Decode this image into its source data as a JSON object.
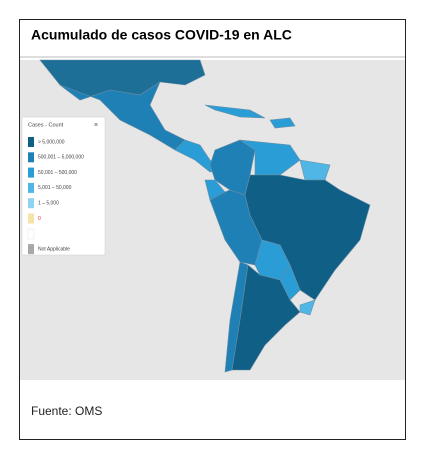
{
  "header": {
    "title": "Acumulado de casos COVID-19  en ALC"
  },
  "legend": {
    "title": "Cases - Count",
    "close": "×",
    "items": [
      {
        "label": "> 5,000,000",
        "color": "#0f5f86"
      },
      {
        "label": "500,001 – 5,000,000",
        "color": "#1e80b5"
      },
      {
        "label": "50,001 – 500,000",
        "color": "#2a9dd6"
      },
      {
        "label": "5,001 – 50,000",
        "color": "#4fb6e6"
      },
      {
        "label": "1 – 5,000",
        "color": "#8fd2f2"
      },
      {
        "label": "0",
        "color": "#f6e3a9"
      },
      {
        "label": "Not Applicable",
        "color": "#a8a8a8"
      }
    ]
  },
  "footer": {
    "source": "Fuente: OMS"
  }
}
